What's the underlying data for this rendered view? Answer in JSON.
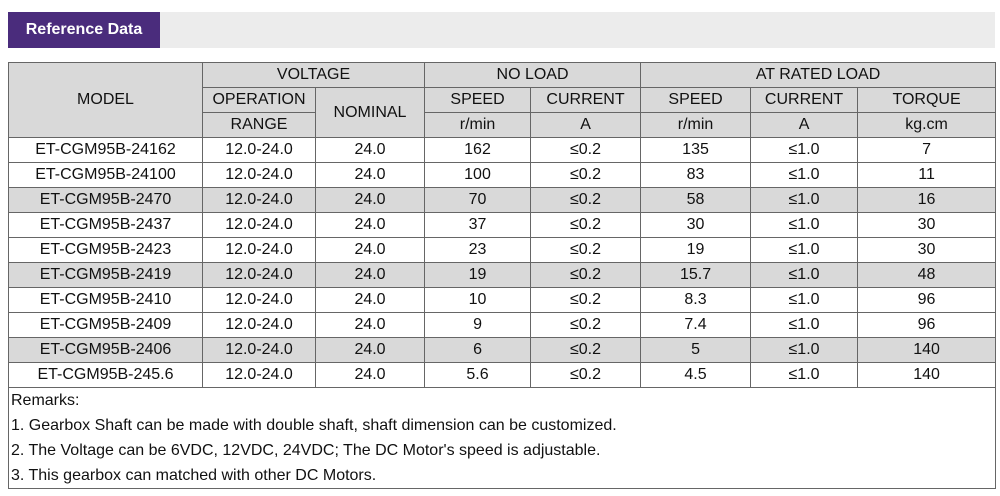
{
  "header": {
    "title": "Reference Data"
  },
  "table": {
    "top": [
      "MODEL",
      "VOLTAGE",
      "NO LOAD",
      "AT RATED LOAD"
    ],
    "mid": [
      "OPERATION",
      "NOMINAL",
      "SPEED",
      "CURRENT",
      "SPEED",
      "CURRENT",
      "TORQUE"
    ],
    "units": [
      "RANGE",
      "r/min",
      "A",
      "r/min",
      "A",
      "kg.cm"
    ],
    "shaded_rows": [
      2,
      5,
      8
    ],
    "rows": [
      [
        "ET-CGM95B-24162",
        "12.0-24.0",
        "24.0",
        "162",
        "≤0.2",
        "135",
        "≤1.0",
        "7"
      ],
      [
        "ET-CGM95B-24100",
        "12.0-24.0",
        "24.0",
        "100",
        "≤0.2",
        "83",
        "≤1.0",
        "11"
      ],
      [
        "ET-CGM95B-2470",
        "12.0-24.0",
        "24.0",
        "70",
        "≤0.2",
        "58",
        "≤1.0",
        "16"
      ],
      [
        "ET-CGM95B-2437",
        "12.0-24.0",
        "24.0",
        "37",
        "≤0.2",
        "30",
        "≤1.0",
        "30"
      ],
      [
        "ET-CGM95B-2423",
        "12.0-24.0",
        "24.0",
        "23",
        "≤0.2",
        "19",
        "≤1.0",
        "30"
      ],
      [
        "ET-CGM95B-2419",
        "12.0-24.0",
        "24.0",
        "19",
        "≤0.2",
        "15.7",
        "≤1.0",
        "48"
      ],
      [
        "ET-CGM95B-2410",
        "12.0-24.0",
        "24.0",
        "10",
        "≤0.2",
        "8.3",
        "≤1.0",
        "96"
      ],
      [
        "ET-CGM95B-2409",
        "12.0-24.0",
        "24.0",
        "9",
        "≤0.2",
        "7.4",
        "≤1.0",
        "96"
      ],
      [
        "ET-CGM95B-2406",
        "12.0-24.0",
        "24.0",
        "6",
        "≤0.2",
        "5",
        "≤1.0",
        "140"
      ],
      [
        "ET-CGM95B-245.6",
        "12.0-24.0",
        "24.0",
        "5.6",
        "≤0.2",
        "4.5",
        "≤1.0",
        "140"
      ]
    ]
  },
  "remarks": {
    "title": "Remarks:",
    "items": [
      "1. Gearbox Shaft can be made with double shaft, shaft dimension can be customized.",
      "2. The Voltage can be 6VDC, 12VDC, 24VDC; The DC Motor's speed is adjustable.",
      "3. This gearbox can matched with other DC Motors."
    ]
  }
}
